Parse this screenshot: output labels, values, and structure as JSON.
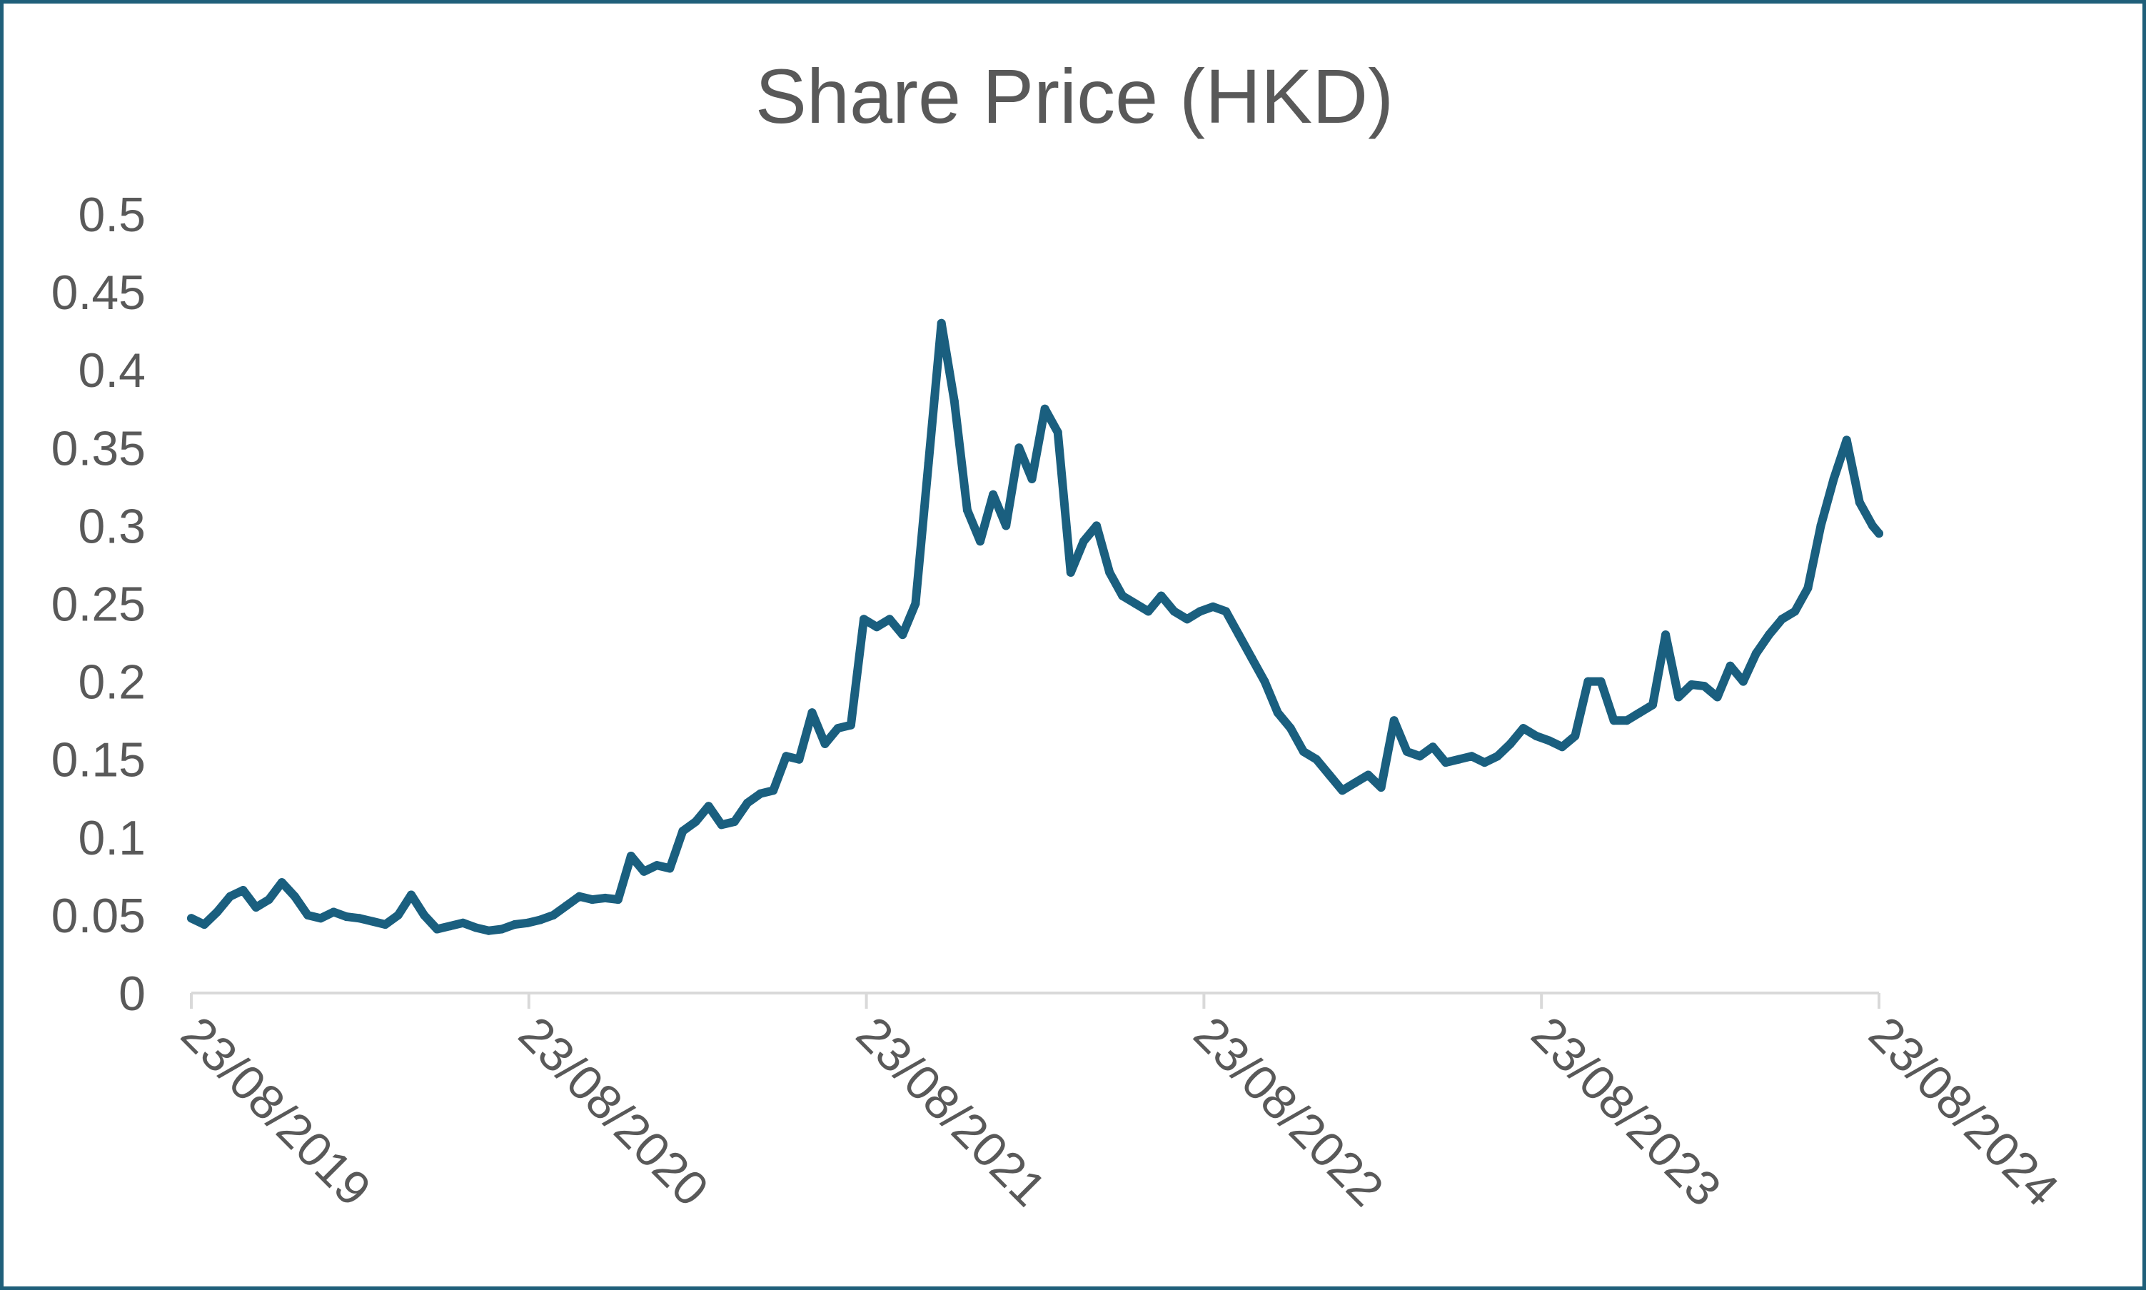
{
  "chart_data": {
    "type": "line",
    "title": "Share Price (HKD)",
    "xlabel": "",
    "ylabel": "",
    "ylim": [
      0,
      0.5
    ],
    "yticks": [
      "0",
      "0.05",
      "0.1",
      "0.15",
      "0.2",
      "0.25",
      "0.3",
      "0.35",
      "0.4",
      "0.45",
      "0.5"
    ],
    "xlim": [
      "2019-08-23",
      "2024-08-23"
    ],
    "xticks": [
      "23/08/2019",
      "23/08/2020",
      "23/08/2021",
      "23/08/2022",
      "23/08/2023",
      "23/08/2024"
    ],
    "grid": false,
    "legend": "none",
    "colors": {
      "line": "#1a5f7f",
      "axis": "#d9d9d9",
      "text": "#595959",
      "border": "#1f5f7a"
    },
    "series": [
      {
        "x": [
          "2019-08-23",
          "2019-09-06",
          "2019-09-20",
          "2019-10-04",
          "2019-10-18",
          "2019-11-01",
          "2019-11-15",
          "2019-11-29",
          "2019-12-13",
          "2019-12-27",
          "2020-01-10",
          "2020-01-24",
          "2020-02-07",
          "2020-02-21",
          "2020-03-06",
          "2020-03-20",
          "2020-04-03",
          "2020-04-17",
          "2020-05-01",
          "2020-05-15",
          "2020-05-29",
          "2020-06-12",
          "2020-06-26",
          "2020-07-10",
          "2020-07-24",
          "2020-08-07",
          "2020-08-21",
          "2020-09-04",
          "2020-09-18",
          "2020-10-02",
          "2020-10-16",
          "2020-10-30",
          "2020-11-13",
          "2020-11-27",
          "2020-12-11",
          "2020-12-25",
          "2021-01-08",
          "2021-01-22",
          "2021-02-05",
          "2021-02-19",
          "2021-03-05",
          "2021-03-19",
          "2021-04-02",
          "2021-04-16",
          "2021-04-30",
          "2021-05-14",
          "2021-05-28",
          "2021-06-11",
          "2021-06-25",
          "2021-07-09",
          "2021-07-23",
          "2021-08-06",
          "2021-08-20",
          "2021-09-03",
          "2021-09-17",
          "2021-10-01",
          "2021-10-15",
          "2021-10-29",
          "2021-11-12",
          "2021-11-26",
          "2021-12-10",
          "2021-12-24",
          "2022-01-07",
          "2022-01-21",
          "2022-02-04",
          "2022-02-18",
          "2022-03-04",
          "2022-03-18",
          "2022-04-01",
          "2022-04-15",
          "2022-04-29",
          "2022-05-13",
          "2022-05-27",
          "2022-06-10",
          "2022-06-24",
          "2022-07-08",
          "2022-07-22",
          "2022-08-05",
          "2022-08-19",
          "2022-09-02",
          "2022-09-16",
          "2022-09-30",
          "2022-10-14",
          "2022-10-28",
          "2022-11-11",
          "2022-11-25",
          "2022-12-09",
          "2022-12-23",
          "2023-01-06",
          "2023-01-20",
          "2023-02-03",
          "2023-02-17",
          "2023-03-03",
          "2023-03-17",
          "2023-03-31",
          "2023-04-14",
          "2023-04-28",
          "2023-05-12",
          "2023-05-26",
          "2023-06-09",
          "2023-06-23",
          "2023-07-07",
          "2023-07-21",
          "2023-08-04",
          "2023-08-18",
          "2023-09-01",
          "2023-09-15",
          "2023-09-29",
          "2023-10-13",
          "2023-10-27",
          "2023-11-10",
          "2023-11-24",
          "2023-12-08",
          "2023-12-22",
          "2024-01-05",
          "2024-01-19",
          "2024-02-02",
          "2024-02-16",
          "2024-03-01",
          "2024-03-15",
          "2024-03-29",
          "2024-04-12",
          "2024-04-26",
          "2024-05-10",
          "2024-05-24",
          "2024-06-07",
          "2024-06-21",
          "2024-07-05",
          "2024-07-19",
          "2024-08-02",
          "2024-08-16",
          "2024-08-23"
        ],
        "values": [
          0.048,
          0.044,
          0.052,
          0.062,
          0.066,
          0.055,
          0.06,
          0.071,
          0.062,
          0.05,
          0.048,
          0.052,
          0.049,
          0.048,
          0.046,
          0.044,
          0.05,
          0.063,
          0.05,
          0.041,
          0.043,
          0.045,
          0.042,
          0.04,
          0.041,
          0.044,
          0.045,
          0.047,
          0.05,
          0.056,
          0.062,
          0.06,
          0.061,
          0.06,
          0.088,
          0.078,
          0.082,
          0.08,
          0.104,
          0.11,
          0.12,
          0.108,
          0.11,
          0.122,
          0.128,
          0.13,
          0.152,
          0.15,
          0.18,
          0.16,
          0.17,
          0.172,
          0.24,
          0.235,
          0.24,
          0.23,
          0.25,
          0.34,
          0.43,
          0.38,
          0.31,
          0.29,
          0.32,
          0.3,
          0.35,
          0.33,
          0.375,
          0.36,
          0.27,
          0.29,
          0.3,
          0.27,
          0.255,
          0.25,
          0.245,
          0.255,
          0.245,
          0.24,
          0.245,
          0.248,
          0.245,
          0.23,
          0.215,
          0.2,
          0.18,
          0.17,
          0.155,
          0.15,
          0.14,
          0.13,
          0.135,
          0.14,
          0.132,
          0.175,
          0.155,
          0.152,
          0.158,
          0.148,
          0.15,
          0.152,
          0.148,
          0.152,
          0.16,
          0.17,
          0.165,
          0.162,
          0.158,
          0.165,
          0.2,
          0.2,
          0.175,
          0.175,
          0.18,
          0.185,
          0.23,
          0.19,
          0.198,
          0.197,
          0.19,
          0.21,
          0.2,
          0.218,
          0.23,
          0.24,
          0.245,
          0.26,
          0.3,
          0.33,
          0.355,
          0.315,
          0.3,
          0.295
        ]
      }
    ]
  }
}
